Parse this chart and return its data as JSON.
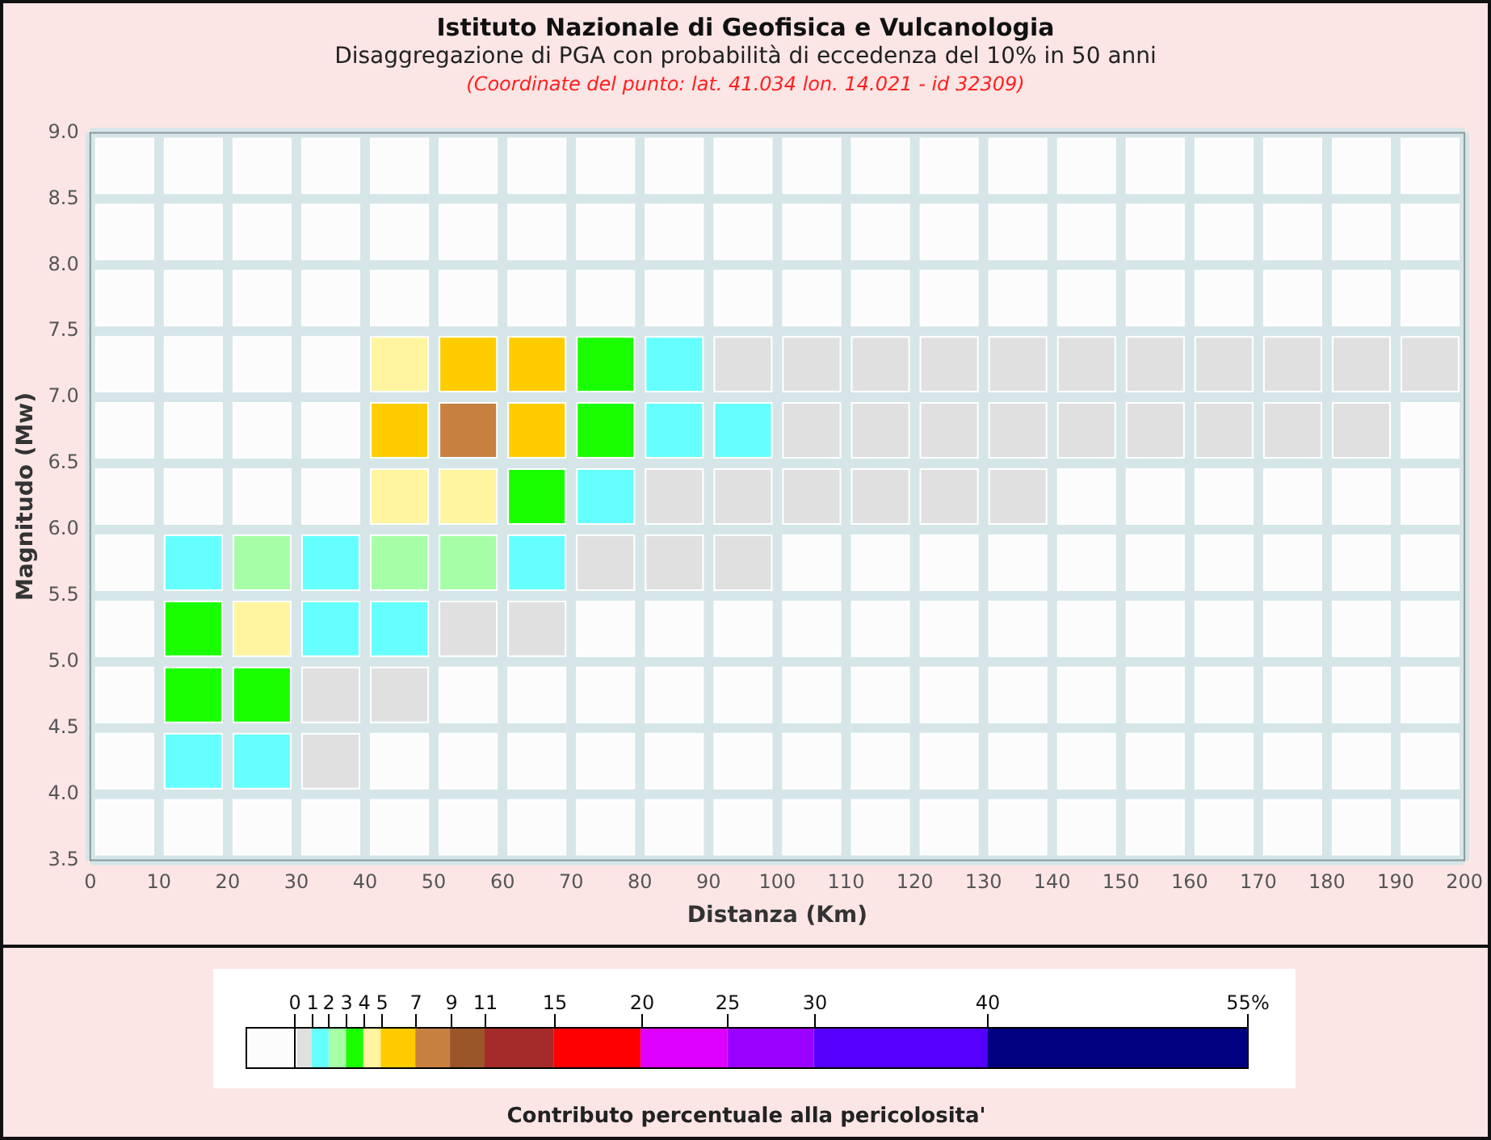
{
  "chart_data": {
    "type": "heatmap",
    "title": "Istituto Nazionale di Geofisica e Vulcanologia",
    "subtitle": "Disaggregazione di PGA con probabilità di eccedenza del 10% in 50 anni",
    "annotations": [
      "(Coordinate del punto: lat. 41.034 lon. 14.021 - id 32309)"
    ],
    "xlabel": "Distanza (Km)",
    "ylabel": "Magnitudo (Mw)",
    "clabel": "Contributo percentuale alla pericolosita'",
    "xlim": [
      0,
      200
    ],
    "xticks": [
      0,
      10,
      20,
      30,
      40,
      50,
      60,
      70,
      80,
      90,
      100,
      110,
      120,
      130,
      140,
      150,
      160,
      170,
      180,
      190,
      200
    ],
    "ylim": [
      3.5,
      9
    ],
    "yticks": [
      {
        "value": 3.5,
        "label": "3.5"
      },
      {
        "value": 4,
        "label": "4.0"
      },
      {
        "value": 4.5,
        "label": "4.5"
      },
      {
        "value": 5,
        "label": "5.0"
      },
      {
        "value": 5.5,
        "label": "5.5"
      },
      {
        "value": 6,
        "label": "6.0"
      },
      {
        "value": 6.5,
        "label": "6.5"
      },
      {
        "value": 7,
        "label": "7.0"
      },
      {
        "value": 7.5,
        "label": "7.5"
      },
      {
        "value": 8,
        "label": "8.0"
      },
      {
        "value": 8.5,
        "label": "8.5"
      },
      {
        "value": 9,
        "label": "9.0"
      }
    ],
    "grid": true,
    "clim": [
      0,
      55
    ],
    "cticks": [
      0,
      1,
      2,
      3,
      4,
      5,
      7,
      9,
      11,
      15,
      20,
      25,
      30,
      40,
      {
        "value": 55,
        "label": "55%"
      }
    ],
    "colors": [
      "#fcfcfc",
      "#e0e0e0",
      "#66ffff",
      "#a6ffa6",
      "#1aff00",
      "#fff5a0",
      "#ffcc00",
      "#c88040",
      "#9a5528",
      "#a52a2a",
      "#ff0000",
      "#dd00ff",
      "#9900ff",
      "#5500ff",
      "#000080"
    ],
    "cells": [
      [
        0,
        0,
        0,
        0,
        0,
        0,
        0,
        0,
        0,
        0,
        0,
        0,
        0,
        0,
        0,
        0,
        0,
        0,
        0,
        0
      ],
      [
        0,
        0,
        0,
        0,
        0,
        0,
        0,
        0,
        0,
        0,
        0,
        0,
        0,
        0,
        0,
        0,
        0,
        0,
        0,
        0
      ],
      [
        0,
        0,
        0,
        0,
        0,
        0,
        0,
        0,
        0,
        0,
        0,
        0,
        0,
        0,
        0,
        0,
        0,
        0,
        0,
        0
      ],
      [
        0,
        0,
        0,
        0,
        4.5,
        6,
        6,
        3.5,
        1.5,
        0.5,
        0.5,
        0.5,
        0.5,
        0.5,
        0.5,
        0.5,
        0.5,
        0.5,
        0.5,
        0.5
      ],
      [
        0,
        0,
        0,
        0,
        6,
        8,
        6,
        3.5,
        1.5,
        1.5,
        0.5,
        0.5,
        0.5,
        0.5,
        0.5,
        0.5,
        0.5,
        0.5,
        0.5,
        0
      ],
      [
        0,
        0,
        0,
        0,
        4.5,
        4.5,
        3.5,
        1.5,
        0.5,
        0.5,
        0.5,
        0.5,
        0.5,
        0.5,
        0,
        0,
        0,
        0,
        0,
        0
      ],
      [
        0,
        1.5,
        2.5,
        1.5,
        2.5,
        2.5,
        1.5,
        0.5,
        0.5,
        0.5,
        0,
        0,
        0,
        0,
        0,
        0,
        0,
        0,
        0,
        0
      ],
      [
        0,
        3.5,
        4.5,
        1.5,
        1.5,
        0.5,
        0.5,
        0,
        0,
        0,
        0,
        0,
        0,
        0,
        0,
        0,
        0,
        0,
        0,
        0
      ],
      [
        0,
        3.5,
        3.5,
        0.5,
        0.5,
        0,
        0,
        0,
        0,
        0,
        0,
        0,
        0,
        0,
        0,
        0,
        0,
        0,
        0,
        0
      ],
      [
        0,
        1.5,
        1.5,
        0.5,
        0,
        0,
        0,
        0,
        0,
        0,
        0,
        0,
        0,
        0,
        0,
        0,
        0,
        0,
        0,
        0
      ],
      [
        0,
        0,
        0,
        0,
        0,
        0,
        0,
        0,
        0,
        0,
        0,
        0,
        0,
        0,
        0,
        0,
        0,
        0,
        0,
        0
      ]
    ]
  }
}
